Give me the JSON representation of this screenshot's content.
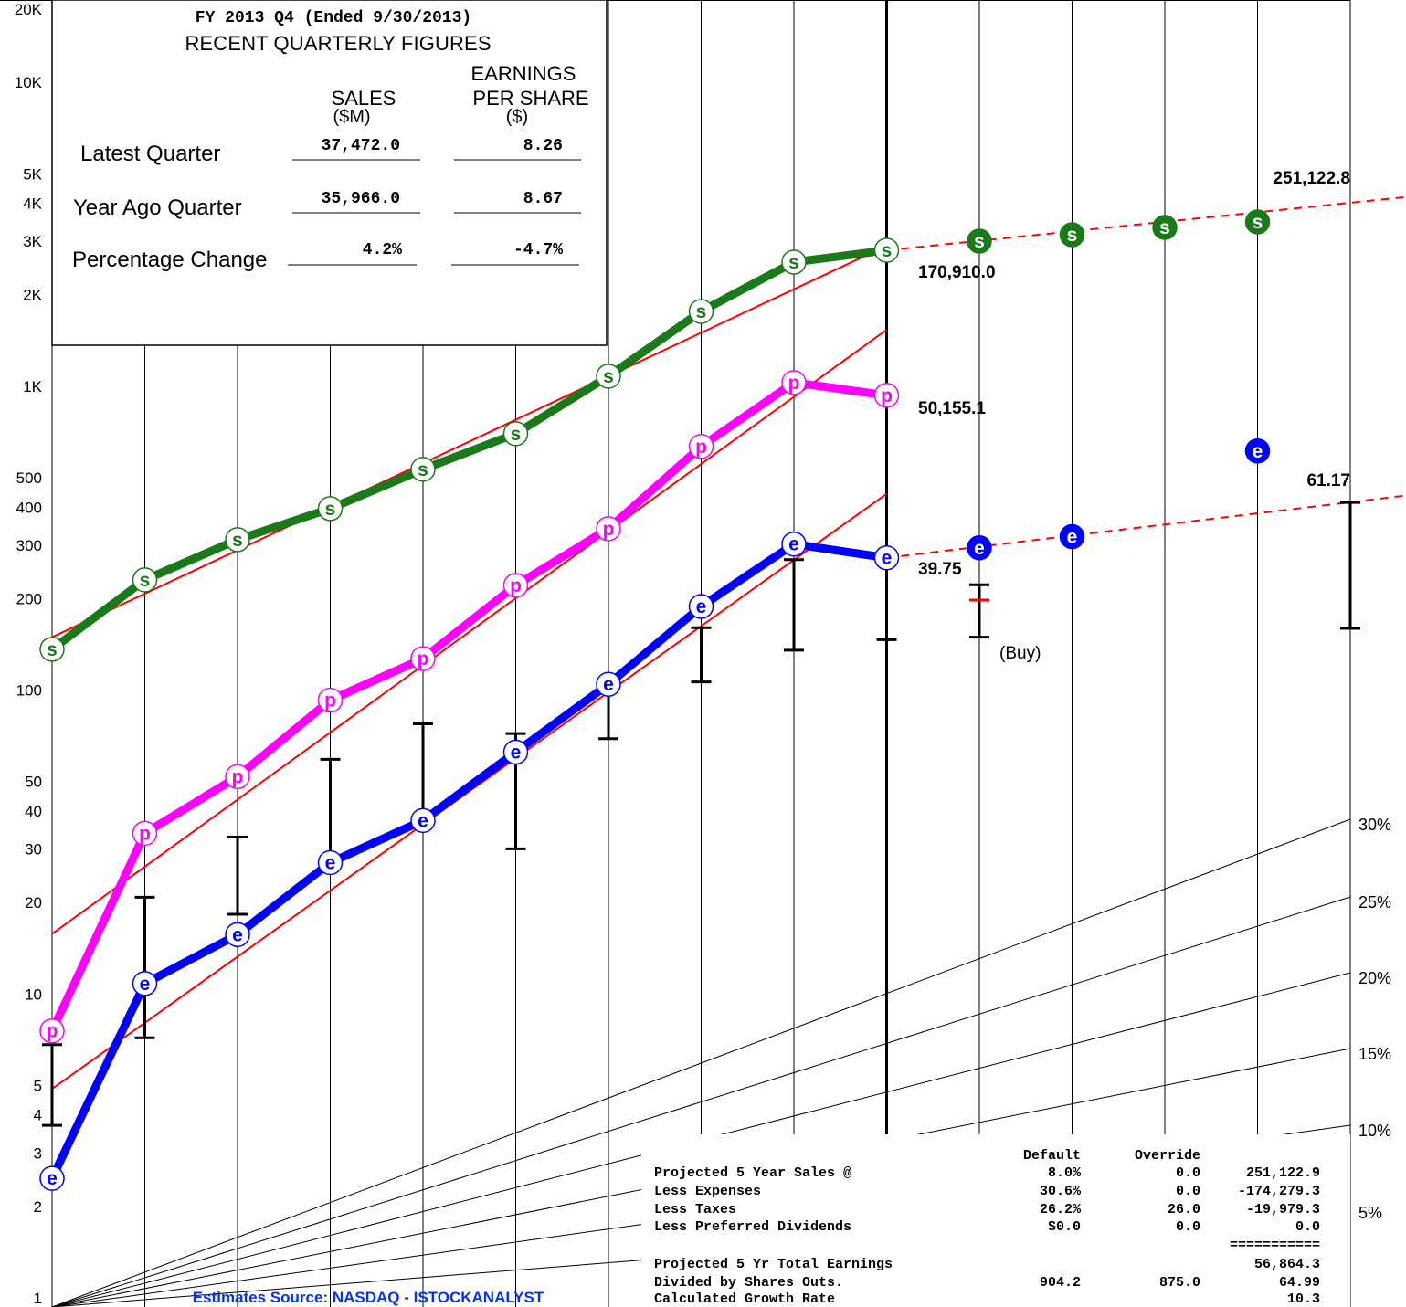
{
  "chart_data": {
    "type": "line",
    "ylog": true,
    "ylim": [
      1,
      20000
    ],
    "yticks": [
      1,
      2,
      3,
      4,
      5,
      10,
      20,
      30,
      40,
      50,
      100,
      200,
      300,
      400,
      500,
      {
        "value": 1000,
        "label": "1K"
      },
      {
        "value": 2000,
        "label": "2K"
      },
      {
        "value": 3000,
        "label": "3K"
      },
      {
        "value": 4000,
        "label": "4K"
      },
      {
        "value": 5000,
        "label": "5K"
      },
      {
        "value": 10000,
        "label": "10K"
      },
      {
        "value": 20000,
        "label": "20K"
      }
    ],
    "minor_yticks": [
      6,
      7,
      8,
      9,
      60,
      70,
      80,
      90,
      600,
      700,
      800,
      900,
      6000,
      7000,
      8000,
      9000
    ],
    "grid": true,
    "series": [
      {
        "marker": "s",
        "color": "#1a7a1a",
        "line": true,
        "filled": false,
        "values": [
          146,
          247,
          335,
          424,
          571,
          748,
          1156,
          1889,
          2744,
          3002,
          null,
          null,
          null,
          null,
          null
        ]
      },
      {
        "marker": "s",
        "color": "#1a7a1a",
        "line": false,
        "filled": true,
        "values": [
          null,
          null,
          null,
          null,
          null,
          null,
          null,
          null,
          null,
          null,
          3218,
          3378,
          3570,
          3722,
          null
        ]
      },
      {
        "marker": "p",
        "color": "#ff00ff",
        "line": true,
        "filled": false,
        "values": [
          8.1,
          36.2,
          55.6,
          99.3,
          136,
          237,
          364,
          679,
          1102,
          1000,
          null,
          null,
          null,
          null,
          null
        ]
      },
      {
        "marker": "e",
        "color": "#0000ff",
        "line": true,
        "filled": false,
        "values": [
          2.65,
          11.6,
          16.8,
          29,
          39.9,
          67,
          112,
          202,
          324,
          292,
          null,
          null,
          null,
          null,
          null
        ]
      },
      {
        "marker": "e",
        "color": "#0000ff",
        "line": false,
        "filled": true,
        "values": [
          null,
          null,
          null,
          null,
          null,
          null,
          null,
          null,
          null,
          null,
          315,
          343,
          null,
          656,
          null
        ]
      }
    ],
    "ranges": {
      "color": "#000000",
      "highs": [
        7.3,
        22.3,
        35.2,
        63.4,
        83,
        77.1,
        106,
        172,
        288,
        292,
        238,
        null,
        null,
        null,
        444
      ],
      "lows": [
        3.96,
        7.69,
        19.6,
        29,
        41.6,
        32.2,
        74.2,
        114,
        145,
        157,
        160,
        null,
        null,
        null,
        171
      ],
      "mid_color": "#ff0000",
      "mids": [
        null,
        null,
        null,
        null,
        null,
        null,
        null,
        null,
        null,
        null,
        212,
        null,
        null,
        null,
        null
      ]
    },
    "trendlines": [
      {
        "color": "#ff0000",
        "dashed": false,
        "x": [
          0,
          9
        ],
        "values": [
          160,
          3106
        ]
      },
      {
        "color": "#ff0000",
        "dashed": false,
        "x": [
          0,
          9
        ],
        "values": [
          16.9,
          1644
        ]
      },
      {
        "color": "#ff0000",
        "dashed": false,
        "x": [
          0,
          9
        ],
        "values": [
          5.22,
          474
        ]
      },
      {
        "color": "#ff0000",
        "dashed": true,
        "x": [
          9,
          14
        ],
        "values": [
          3002,
          4303
        ]
      },
      {
        "color": "#ff0000",
        "dashed": true,
        "x": [
          9,
          14
        ],
        "values": [
          292,
          445
        ]
      }
    ],
    "growth_labels": [
      "30%",
      "25%",
      "20%",
      "15%",
      "10%",
      "5%"
    ],
    "annotations": [
      "170,910.0",
      "50,155.1",
      "39.75",
      "251,122.8",
      "61.17",
      "(Buy)"
    ],
    "source": "Estimates Source: NASDAQ - ISTOCKANALYST"
  },
  "quarterly": {
    "title": "FY 2013 Q4  (Ended 9/30/2013)",
    "subtitle": "RECENT QUARTERLY FIGURES",
    "sales_header": [
      "SALES",
      "($M)"
    ],
    "eps_header": [
      "EARNINGS",
      "PER SHARE",
      "($)"
    ],
    "rows": [
      [
        "Latest Quarter",
        "37,472.0",
        "8.26"
      ],
      [
        "Year Ago Quarter",
        "35,966.0",
        "8.67"
      ],
      [
        "Percentage Change",
        "4.2%",
        "-4.7%"
      ]
    ]
  },
  "projection": {
    "headers": [
      "Default",
      "Override"
    ],
    "rows": [
      {
        "label": "Projected 5 Year Sales @",
        "default": "8.0%",
        "override": "0.0",
        "value": "251,122.9"
      },
      {
        "label": "Less Expenses",
        "default": "30.6%",
        "override": "0.0",
        "value": "-174,279.3"
      },
      {
        "label": "Less Taxes",
        "default": "26.2%",
        "override": "26.0",
        "value": "-19,979.3"
      },
      {
        "label": "Less Preferred Dividends",
        "default": "$0.0",
        "override": "0.0",
        "value": "0.0"
      },
      {
        "value": "==========="
      },
      {
        "label": "Projected 5 Yr Total Earnings",
        "value": "56,864.3"
      },
      {
        "label": "Divided by Shares Outs.",
        "default": "904.2",
        "override": "875.0",
        "value": "64.99"
      },
      {
        "label": "Calculated Growth Rate",
        "value": "10.3"
      }
    ]
  }
}
